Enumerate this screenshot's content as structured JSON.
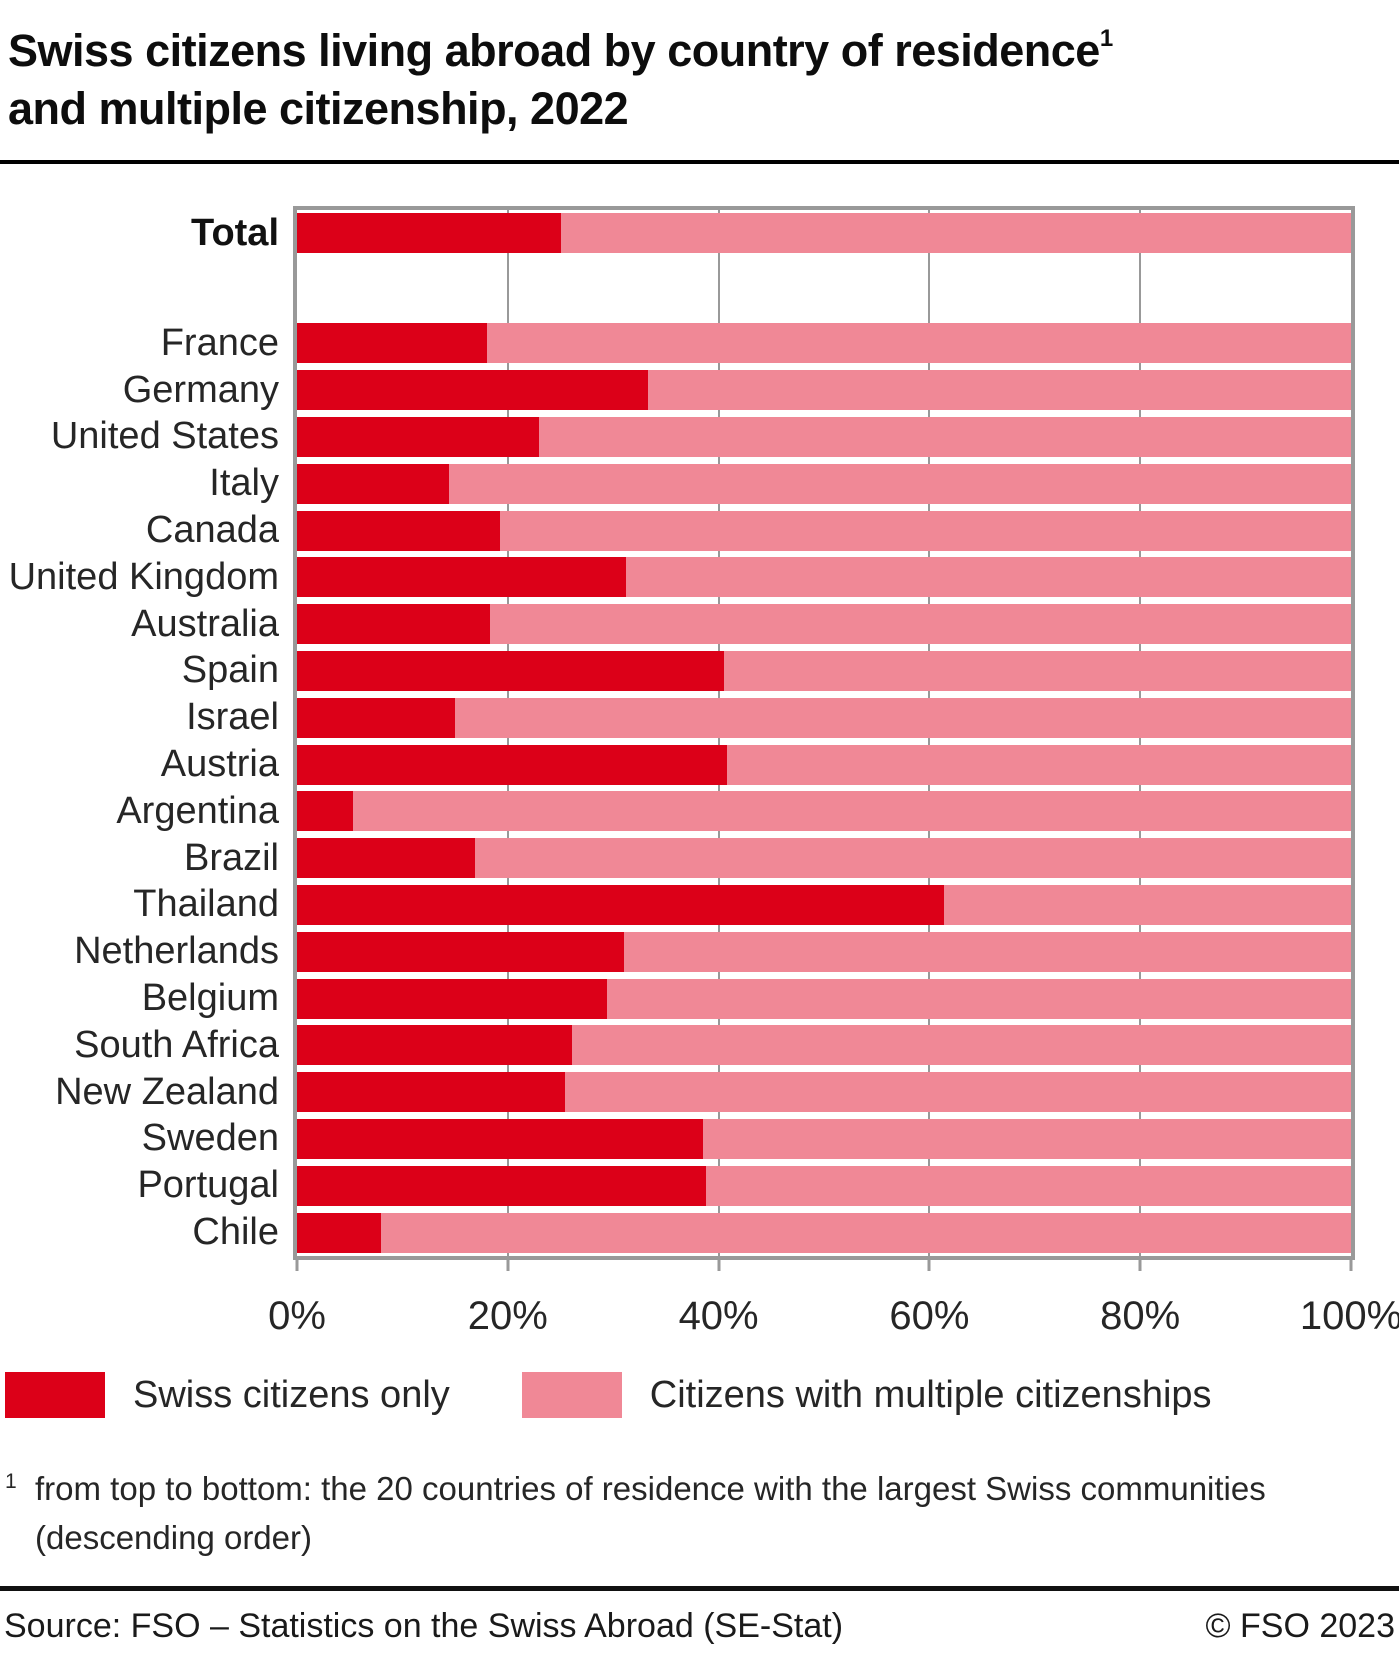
{
  "title": {
    "line1": "Swiss citizens living abroad by country of residence",
    "sup": "1",
    "line2": "and multiple citizenship, 2022"
  },
  "colors": {
    "swiss_only_red": "#dc0018",
    "multiple_pink": "#f08896",
    "grid_gray": "#999999",
    "rule_black": "#000000"
  },
  "chart_data": {
    "type": "bar",
    "orientation": "horizontal",
    "stacked": true,
    "unit": "percent",
    "grid": true,
    "xlim": [
      0,
      100
    ],
    "x_ticks": [
      "0%",
      "20%",
      "40%",
      "60%",
      "80%",
      "100%"
    ],
    "x_tick_positions": [
      0,
      20,
      40,
      60,
      80,
      100
    ],
    "gridline_positions": [
      20,
      40,
      60,
      80
    ],
    "legend_position": "bottom",
    "categories": [
      "Total",
      "France",
      "Germany",
      "United States",
      "Italy",
      "Canada",
      "United Kingdom",
      "Australia",
      "Spain",
      "Israel",
      "Austria",
      "Argentina",
      "Brazil",
      "Thailand",
      "Netherlands",
      "Belgium",
      "South Africa",
      "New Zealand",
      "Sweden",
      "Portugal",
      "Chile"
    ],
    "series": [
      {
        "name": "Swiss citizens only",
        "color": "#dc0018",
        "values": [
          25.0,
          18.0,
          33.3,
          23.0,
          14.4,
          19.3,
          31.2,
          18.3,
          40.5,
          15.0,
          40.8,
          5.3,
          16.9,
          61.4,
          31.0,
          29.4,
          26.1,
          25.4,
          38.5,
          38.8,
          8.0
        ]
      },
      {
        "name": "Citizens with multiple citizenships",
        "color": "#f08896",
        "values": [
          75.0,
          82.0,
          66.7,
          77.0,
          85.6,
          80.7,
          68.8,
          81.7,
          59.5,
          85.0,
          59.2,
          94.7,
          83.1,
          38.6,
          69.0,
          70.6,
          73.9,
          74.6,
          61.5,
          61.2,
          92.0
        ]
      }
    ]
  },
  "legend": {
    "items": [
      {
        "label": "Swiss citizens only",
        "color": "#dc0018"
      },
      {
        "label": "Citizens with multiple citizenships",
        "color": "#f08896"
      }
    ]
  },
  "footnote": {
    "sup": "1",
    "line1": "from top to bottom: the 20 countries of residence with the largest Swiss communities",
    "line2": "(descending order)"
  },
  "footer": {
    "source": "Source: FSO – Statistics on the Swiss Abroad (SE-Stat)",
    "copyright": "© FSO 2023"
  }
}
